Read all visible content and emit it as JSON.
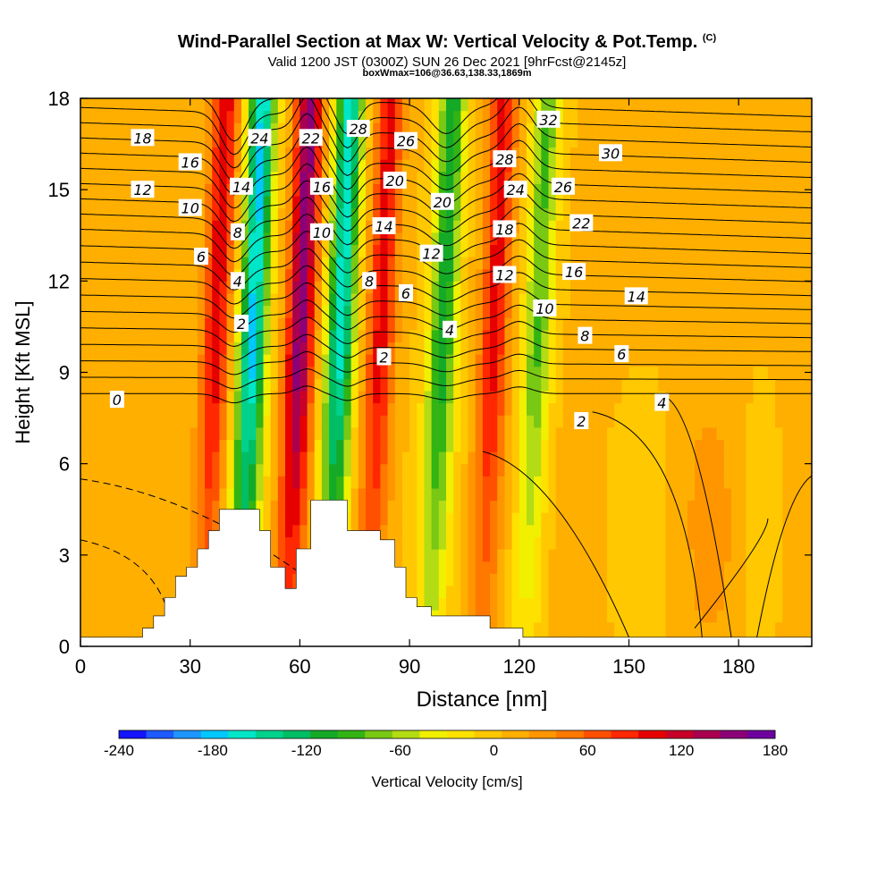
{
  "title": {
    "main": "Wind-Parallel Section at Max W: Vertical Velocity & Pot.Temp.",
    "mark": "(C)",
    "line2": "Valid 1200 JST (0300Z) SUN 26 Dec 2021 [9hrFcst@2145z]",
    "line3": "boxWmax=106@36.63,138.33,1869m"
  },
  "chart_data": {
    "type": "heatmap",
    "xlabel": "Distance [nm]",
    "ylabel": "Height [Kft MSL]",
    "xlim": [
      0,
      200
    ],
    "ylim": [
      0,
      18
    ],
    "xticks": [
      0,
      30,
      60,
      90,
      120,
      150,
      180
    ],
    "yticks": [
      0,
      3,
      6,
      9,
      12,
      15,
      18
    ],
    "colorbar": {
      "label": "Vertical Velocity [cm/s]",
      "ticks": [
        -240,
        -180,
        -120,
        -60,
        0,
        60,
        120,
        180
      ],
      "range": [
        -240,
        180
      ],
      "colors": [
        "#1414ff",
        "#1e5aff",
        "#1e96ff",
        "#00c8ff",
        "#00e6c8",
        "#00d28c",
        "#00be64",
        "#14aa28",
        "#32b414",
        "#78c814",
        "#b4dc14",
        "#f0f000",
        "#ffe100",
        "#ffc800",
        "#ffaf00",
        "#ff9600",
        "#ff7800",
        "#ff5000",
        "#ff2800",
        "#e60000",
        "#c80028",
        "#aa0050",
        "#8c0078",
        "#6e00a0"
      ]
    },
    "velocity_features": [
      {
        "x": 37,
        "kind": "updraft",
        "peak": 100
      },
      {
        "x": 47,
        "kind": "downdraft",
        "peak": -180
      },
      {
        "x": 60,
        "kind": "updraft",
        "peak": 150
      },
      {
        "x": 71,
        "kind": "downdraft",
        "peak": -170
      },
      {
        "x": 82,
        "kind": "updraft",
        "peak": 95
      },
      {
        "x": 99,
        "kind": "downdraft",
        "peak": -120
      },
      {
        "x": 113,
        "kind": "updraft",
        "peak": 95
      },
      {
        "x": 125,
        "kind": "downdraft",
        "peak": -90
      },
      {
        "x": 172,
        "kind": "updraft",
        "peak": 30
      },
      {
        "x": 185,
        "kind": "downdraft",
        "peak": -10
      }
    ],
    "terrain": [
      [
        0,
        0.3
      ],
      [
        17,
        0.3
      ],
      [
        17,
        0.6
      ],
      [
        20,
        0.6
      ],
      [
        20,
        1.0
      ],
      [
        23,
        1.0
      ],
      [
        23,
        1.6
      ],
      [
        26,
        1.6
      ],
      [
        26,
        2.3
      ],
      [
        29,
        2.3
      ],
      [
        29,
        2.6
      ],
      [
        32,
        2.6
      ],
      [
        32,
        3.2
      ],
      [
        35,
        3.2
      ],
      [
        35,
        3.8
      ],
      [
        38,
        3.8
      ],
      [
        38,
        4.5
      ],
      [
        49,
        4.5
      ],
      [
        49,
        3.8
      ],
      [
        52,
        3.8
      ],
      [
        52,
        2.6
      ],
      [
        56,
        2.6
      ],
      [
        56,
        1.9
      ],
      [
        59,
        1.9
      ],
      [
        59,
        3.2
      ],
      [
        63,
        3.2
      ],
      [
        63,
        4.8
      ],
      [
        73,
        4.8
      ],
      [
        73,
        3.8
      ],
      [
        82,
        3.8
      ],
      [
        82,
        3.5
      ],
      [
        86,
        3.5
      ],
      [
        86,
        2.6
      ],
      [
        89,
        2.6
      ],
      [
        89,
        1.6
      ],
      [
        92,
        1.6
      ],
      [
        92,
        1.3
      ],
      [
        96,
        1.3
      ],
      [
        96,
        1.0
      ],
      [
        112,
        1.0
      ],
      [
        112,
        0.6
      ],
      [
        121,
        0.6
      ],
      [
        121,
        0.3
      ],
      [
        200,
        0.3
      ]
    ],
    "theta_contour_labels": [
      {
        "v": "0",
        "x": 10,
        "y": 8.1
      },
      {
        "v": "2",
        "x": 44,
        "y": 10.6
      },
      {
        "v": "4",
        "x": 43,
        "y": 12.0
      },
      {
        "v": "6",
        "x": 33,
        "y": 12.8
      },
      {
        "v": "8",
        "x": 43,
        "y": 13.6
      },
      {
        "v": "10",
        "x": 30,
        "y": 14.4
      },
      {
        "v": "12",
        "x": 17,
        "y": 15.0
      },
      {
        "v": "14",
        "x": 44,
        "y": 15.1
      },
      {
        "v": "16",
        "x": 30,
        "y": 15.9
      },
      {
        "v": "18",
        "x": 17,
        "y": 16.7
      },
      {
        "v": "24",
        "x": 49,
        "y": 16.7
      },
      {
        "v": "22",
        "x": 63,
        "y": 16.7
      },
      {
        "v": "16",
        "x": 66,
        "y": 15.1
      },
      {
        "v": "10",
        "x": 66,
        "y": 13.6
      },
      {
        "v": "28",
        "x": 76,
        "y": 17.0
      },
      {
        "v": "26",
        "x": 89,
        "y": 16.6
      },
      {
        "v": "20",
        "x": 86,
        "y": 15.3
      },
      {
        "v": "14",
        "x": 83,
        "y": 13.8
      },
      {
        "v": "8",
        "x": 79,
        "y": 12.0
      },
      {
        "v": "6",
        "x": 89,
        "y": 11.6
      },
      {
        "v": "2",
        "x": 83,
        "y": 9.5
      },
      {
        "v": "20",
        "x": 99,
        "y": 14.6
      },
      {
        "v": "12",
        "x": 96,
        "y": 12.9
      },
      {
        "v": "4",
        "x": 101,
        "y": 10.4
      },
      {
        "v": "28",
        "x": 116,
        "y": 16.0
      },
      {
        "v": "24",
        "x": 119,
        "y": 15.0
      },
      {
        "v": "18",
        "x": 116,
        "y": 13.7
      },
      {
        "v": "12",
        "x": 116,
        "y": 12.2
      },
      {
        "v": "10",
        "x": 127,
        "y": 11.1
      },
      {
        "v": "32",
        "x": 128,
        "y": 17.3
      },
      {
        "v": "26",
        "x": 132,
        "y": 15.1
      },
      {
        "v": "22",
        "x": 137,
        "y": 13.9
      },
      {
        "v": "16",
        "x": 135,
        "y": 12.3
      },
      {
        "v": "8",
        "x": 138,
        "y": 10.2
      },
      {
        "v": "2",
        "x": 137,
        "y": 7.4
      },
      {
        "v": "30",
        "x": 145,
        "y": 16.2
      },
      {
        "v": "14",
        "x": 152,
        "y": 11.5
      },
      {
        "v": "6",
        "x": 148,
        "y": 9.6
      },
      {
        "v": "4",
        "x": 159,
        "y": 8.0
      }
    ]
  }
}
